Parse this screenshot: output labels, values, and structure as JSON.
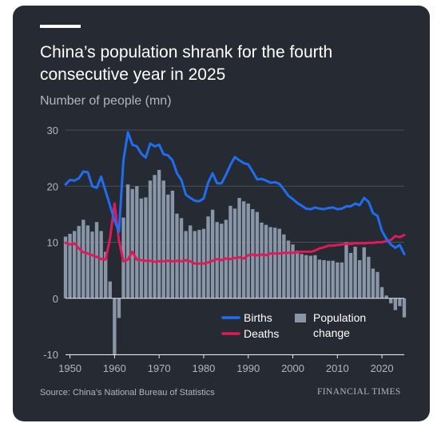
{
  "title": "China’s population shrank for the fourth consecutive year in 2025",
  "subtitle": "Number of people (mn)",
  "source": "Source: China’s National Bureau of Statistics",
  "brand": "FINANCIAL TIMES",
  "colors": {
    "card": "#262a33",
    "births": "#1f6ef0",
    "deaths": "#e0195a",
    "population_change": "#8896a8",
    "grid": "#4a4f5a",
    "text_muted": "#b3b6bd"
  },
  "chart_data": {
    "type": "line",
    "xlim": [
      1949,
      2025
    ],
    "ylim": [
      -10,
      30
    ],
    "yticks": [
      "-10",
      "0",
      "10",
      "20",
      "30"
    ],
    "xticks": [
      "1950",
      "1960",
      "1970",
      "1980",
      "1990",
      "2000",
      "2010",
      "2020"
    ],
    "legend": {
      "births": "Births",
      "deaths": "Deaths",
      "population_change_line1": "Population",
      "population_change_line2": "change"
    },
    "years": [
      1949,
      1950,
      1951,
      1952,
      1953,
      1954,
      1955,
      1956,
      1957,
      1958,
      1959,
      1960,
      1961,
      1962,
      1963,
      1964,
      1965,
      1966,
      1967,
      1968,
      1969,
      1970,
      1971,
      1972,
      1973,
      1974,
      1975,
      1976,
      1977,
      1978,
      1979,
      1980,
      1981,
      1982,
      1983,
      1984,
      1985,
      1986,
      1987,
      1988,
      1989,
      1990,
      1991,
      1992,
      1993,
      1994,
      1995,
      1996,
      1997,
      1998,
      1999,
      2000,
      2001,
      2002,
      2003,
      2004,
      2005,
      2006,
      2007,
      2008,
      2009,
      2010,
      2011,
      2012,
      2013,
      2014,
      2015,
      2016,
      2017,
      2018,
      2019,
      2020,
      2021,
      2022,
      2023,
      2024,
      2025
    ],
    "series": [
      {
        "name": "Births",
        "key": "births",
        "values": [
          20.3,
          21.1,
          21.0,
          21.4,
          22.6,
          22.5,
          20.0,
          19.7,
          21.7,
          19.1,
          16.5,
          13.9,
          11.9,
          24.6,
          29.6,
          27.4,
          27.1,
          25.8,
          25.1,
          27.6,
          27.1,
          27.4,
          25.7,
          25.5,
          24.6,
          22.3,
          21.1,
          18.5,
          17.9,
          17.4,
          17.3,
          17.8,
          20.6,
          22.3,
          20.5,
          20.5,
          22.0,
          23.8,
          25.2,
          24.6,
          24.1,
          23.9,
          22.6,
          21.2,
          21.3,
          21.0,
          20.6,
          20.7,
          20.4,
          19.4,
          18.3,
          17.7,
          17.0,
          16.5,
          16.0,
          15.9,
          16.2,
          16.0,
          15.9,
          16.1,
          16.2,
          15.9,
          16.0,
          16.4,
          16.4,
          16.9,
          16.6,
          17.9,
          17.2,
          15.2,
          14.7,
          12.0,
          10.6,
          9.6,
          9.0,
          9.5,
          7.9
        ]
      },
      {
        "name": "Deaths",
        "key": "deaths",
        "values": [
          9.9,
          9.6,
          9.8,
          8.9,
          8.2,
          8.0,
          7.7,
          7.4,
          7.0,
          6.9,
          10.8,
          16.9,
          10.3,
          6.6,
          6.9,
          8.3,
          6.9,
          6.8,
          6.7,
          6.7,
          6.5,
          6.6,
          6.6,
          6.7,
          6.6,
          6.7,
          6.6,
          6.8,
          6.6,
          6.2,
          6.2,
          6.2,
          6.4,
          6.7,
          7.0,
          6.8,
          7.1,
          7.0,
          7.2,
          7.3,
          7.1,
          7.7,
          7.8,
          7.7,
          7.8,
          7.7,
          8.0,
          8.0,
          8.0,
          8.1,
          8.1,
          8.1,
          8.2,
          8.3,
          8.3,
          8.3,
          8.5,
          8.9,
          9.1,
          9.4,
          9.4,
          9.5,
          9.6,
          9.7,
          9.7,
          9.8,
          9.8,
          9.8,
          9.9,
          9.9,
          10.0,
          10.0,
          10.2,
          10.4,
          11.1,
          10.9,
          11.3
        ]
      },
      {
        "name": "Population change",
        "key": "population_change",
        "values": [
          11.0,
          11.5,
          12.0,
          12.9,
          14.0,
          13.0,
          11.9,
          13.6,
          12.0,
          8.3,
          3.0,
          -10.0,
          -3.5,
          14.4,
          20.3,
          19.5,
          20.0,
          17.8,
          18.0,
          21.0,
          22.0,
          22.9,
          21.0,
          18.5,
          19.2,
          15.1,
          14.3,
          12.0,
          13.0,
          12.0,
          12.2,
          12.4,
          14.6,
          15.8,
          13.6,
          13.3,
          14.0,
          16.5,
          16.0,
          17.9,
          17.3,
          16.9,
          15.9,
          15.4,
          13.5,
          13.1,
          12.7,
          12.6,
          12.4,
          11.4,
          10.3,
          9.6,
          8.5,
          7.9,
          7.7,
          7.6,
          7.7,
          6.9,
          6.8,
          6.7,
          6.7,
          6.4,
          6.4,
          10.0,
          8.1,
          9.2,
          6.8,
          9.1,
          7.4,
          5.3,
          4.7,
          2.0,
          0.5,
          -0.9,
          -2.1,
          -1.4,
          -3.4
        ]
      }
    ]
  }
}
